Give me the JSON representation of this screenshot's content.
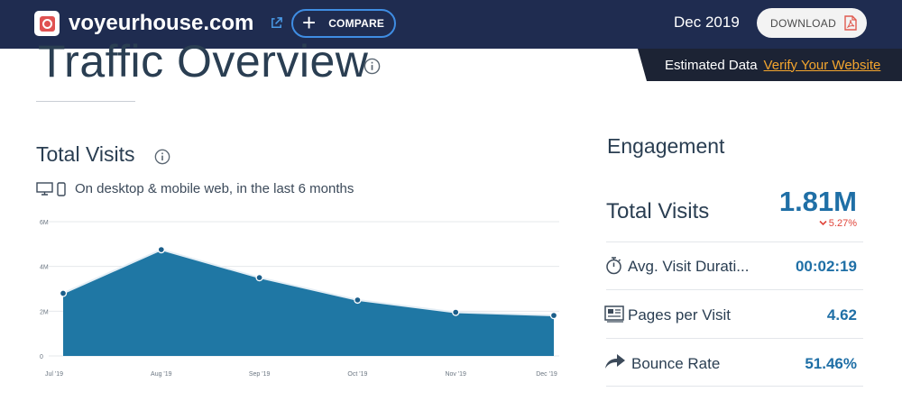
{
  "header": {
    "site_name": "voyeurhouse.com",
    "compare_label": "COMPARE",
    "date": "Dec 2019",
    "download_label": "DOWNLOAD"
  },
  "page": {
    "title": "Traffic Overview"
  },
  "estimated": {
    "label": "Estimated Data",
    "verify_link": "Verify Your Website"
  },
  "total_visits": {
    "title": "Total Visits",
    "device_text": "On desktop & mobile web, in the last 6 months"
  },
  "chart_data": {
    "type": "area",
    "title": "Total Visits",
    "categories": [
      "Jul '19",
      "Aug '19",
      "Sep '19",
      "Oct '19",
      "Nov '19",
      "Dec '19"
    ],
    "values": [
      2.8,
      4.75,
      3.5,
      2.5,
      1.95,
      1.81
    ],
    "y_ticks": [
      "0",
      "2M",
      "4M",
      "6M"
    ],
    "y_tick_values": [
      0,
      2,
      4,
      6
    ],
    "ylim": [
      0,
      6
    ],
    "unit": "M",
    "grid": true,
    "fill_color": "#1f77a4"
  },
  "engagement": {
    "title": "Engagement",
    "total_visits_label": "Total Visits",
    "total_visits_value": "1.81M",
    "total_visits_change": "5.27%",
    "rows": [
      {
        "label": "Avg. Visit Durati...",
        "value": "00:02:19",
        "icon": "stopwatch-icon"
      },
      {
        "label": "Pages per Visit",
        "value": "4.62",
        "icon": "pages-icon"
      },
      {
        "label": "Bounce Rate",
        "value": "51.46%",
        "icon": "bounce-arrow-icon"
      }
    ]
  },
  "colors": {
    "header_bg": "#1f2c50",
    "accent_blue": "#1f6fa6",
    "negative_red": "#e0453b",
    "link_orange": "#f3a52e"
  }
}
